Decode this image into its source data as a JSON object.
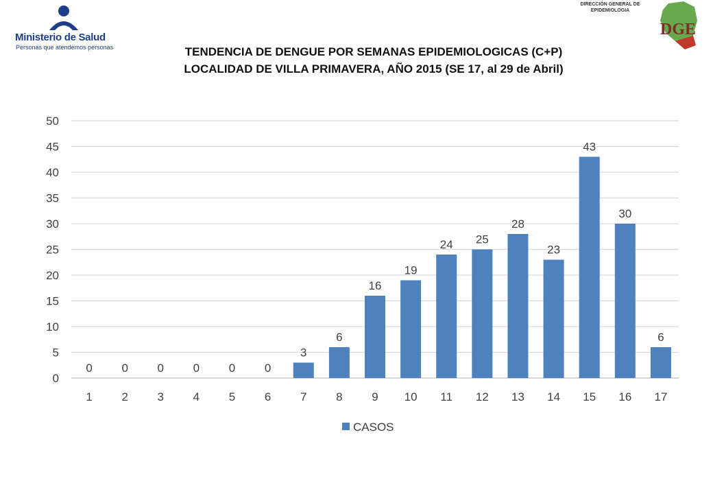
{
  "header": {
    "org_name": "Ministerio de Salud",
    "org_tagline": "Personas que atendemos personas",
    "dge_line1": "DIRECCIÓN GENERAL DE",
    "dge_line2": "EPIDEMIOLOGIA",
    "dge_mark": "DGE"
  },
  "chart_data": {
    "type": "bar",
    "title_line1": "TENDENCIA DE DENGUE POR SEMANAS EPIDEMIOLOGICAS (C+P)",
    "title_line2": "LOCALIDAD DE VILLA PRIMAVERA, AÑO 2015 (SE 17, al 29 de Abril)",
    "categories": [
      "1",
      "2",
      "3",
      "4",
      "5",
      "6",
      "7",
      "8",
      "9",
      "10",
      "11",
      "12",
      "13",
      "14",
      "15",
      "16",
      "17"
    ],
    "series": [
      {
        "name": "CASOS",
        "values": [
          0,
          0,
          0,
          0,
          0,
          0,
          3,
          6,
          16,
          19,
          24,
          25,
          28,
          23,
          43,
          30,
          6
        ],
        "color": "#4f81bd"
      }
    ],
    "ylim": [
      0,
      50
    ],
    "yticks": [
      0,
      5,
      10,
      15,
      20,
      25,
      30,
      35,
      40,
      45,
      50
    ],
    "grid": true,
    "legend": "bottom",
    "data_labels": true
  }
}
